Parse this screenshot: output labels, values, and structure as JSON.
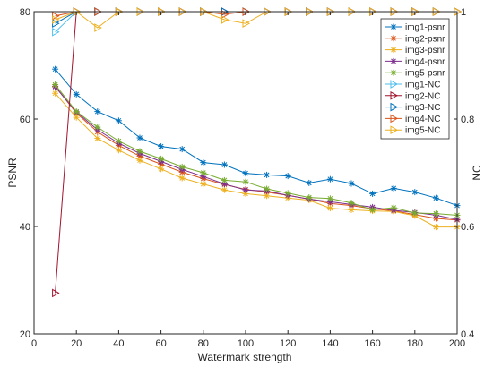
{
  "chart_data": {
    "type": "line",
    "title": "",
    "xlabel": "Watermark strength",
    "ylabel_left": "PSNR",
    "ylabel_right": "NC",
    "xlim": [
      0,
      200
    ],
    "ylim_left": [
      20,
      80
    ],
    "ylim_right": [
      0.4,
      1
    ],
    "xticks": [
      0,
      20,
      40,
      60,
      80,
      100,
      120,
      140,
      160,
      180,
      200
    ],
    "yticks_left": [
      20,
      40,
      60,
      80
    ],
    "yticks_right": [
      0.4,
      0.6,
      0.8,
      1
    ],
    "xtick_labels": [
      "0",
      "20",
      "40",
      "60",
      "80",
      "100",
      "120",
      "140",
      "160",
      "180",
      "200"
    ],
    "ytick_labels_left": [
      "20",
      "40",
      "60",
      "80"
    ],
    "ytick_labels_right": [
      "0.4",
      "0.6",
      "0.8",
      "1"
    ],
    "grid": false,
    "legend_position": "top-right",
    "x": [
      10,
      20,
      30,
      40,
      50,
      60,
      70,
      80,
      90,
      100,
      110,
      120,
      130,
      140,
      150,
      160,
      170,
      180,
      190,
      200
    ],
    "series": [
      {
        "name": "img1-psnr",
        "axis": "left",
        "marker": "asterisk",
        "color": "#0072BD",
        "values": [
          69.3,
          64.6,
          61.4,
          59.7,
          56.5,
          54.9,
          54.4,
          51.9,
          51.5,
          49.9,
          49.6,
          49.4,
          48.1,
          48.8,
          48.0,
          46.1,
          47.1,
          46.4,
          45.3,
          43.9
        ]
      },
      {
        "name": "img2-psnr",
        "axis": "left",
        "marker": "asterisk",
        "color": "#D95319",
        "values": [
          66.1,
          61.1,
          57.6,
          55.1,
          53.1,
          51.6,
          50.1,
          48.9,
          47.8,
          46.9,
          46.4,
          45.8,
          45.1,
          44.3,
          43.9,
          43.3,
          42.9,
          42.2,
          41.5,
          41.2
        ]
      },
      {
        "name": "img3-psnr",
        "axis": "left",
        "marker": "asterisk",
        "color": "#EDB120",
        "values": [
          64.8,
          60.3,
          56.4,
          54.2,
          52.3,
          50.7,
          49.0,
          47.9,
          46.8,
          46.1,
          45.7,
          45.3,
          44.9,
          43.4,
          43.1,
          42.9,
          42.8,
          42.0,
          39.9,
          39.9
        ]
      },
      {
        "name": "img4-psnr",
        "axis": "left",
        "marker": "asterisk",
        "color": "#7E2F8E",
        "values": [
          66.0,
          61.3,
          58.0,
          55.5,
          53.6,
          52.1,
          50.6,
          49.3,
          47.9,
          46.8,
          46.6,
          45.8,
          45.1,
          44.6,
          44.1,
          43.6,
          43.0,
          42.6,
          42.1,
          41.3
        ]
      },
      {
        "name": "img5-psnr",
        "axis": "left",
        "marker": "asterisk",
        "color": "#77AC30",
        "values": [
          66.4,
          61.4,
          58.5,
          55.9,
          54.0,
          52.6,
          51.1,
          50.0,
          48.6,
          48.3,
          47.0,
          46.2,
          45.4,
          45.2,
          44.4,
          43.1,
          43.5,
          42.5,
          42.4,
          42.1
        ]
      },
      {
        "name": "img1-NC",
        "axis": "right",
        "marker": "triangle-right",
        "color": "#4DBEEE",
        "values": [
          0.962,
          1,
          1,
          1,
          1,
          1,
          1,
          1,
          1,
          1,
          1,
          1,
          1,
          1,
          1,
          1,
          1,
          1,
          1,
          1
        ]
      },
      {
        "name": "img2-NC",
        "axis": "right",
        "marker": "triangle-right",
        "color": "#A2142F",
        "values": [
          0.476,
          1,
          1,
          1,
          1,
          1,
          1,
          1,
          1,
          1,
          1,
          1,
          1,
          1,
          1,
          1,
          1,
          1,
          1,
          1
        ]
      },
      {
        "name": "img3-NC",
        "axis": "right",
        "marker": "triangle-right",
        "color": "#0072BD",
        "values": [
          0.978,
          1,
          1,
          1,
          1,
          1,
          1,
          1,
          1,
          1,
          1,
          1,
          1,
          1,
          1,
          1,
          1,
          1,
          1,
          1
        ]
      },
      {
        "name": "img4-NC",
        "axis": "right",
        "marker": "triangle-right",
        "color": "#D95319",
        "values": [
          0.992,
          1,
          1,
          1,
          1,
          1,
          1,
          1,
          0.995,
          1,
          1,
          1,
          1,
          1,
          1,
          1,
          1,
          1,
          1,
          1
        ]
      },
      {
        "name": "img5-NC",
        "axis": "right",
        "marker": "triangle-right",
        "color": "#EDB120",
        "values": [
          0.985,
          1,
          0.97,
          1,
          1,
          1,
          1,
          1,
          0.985,
          0.978,
          1,
          1,
          1,
          1,
          1,
          1,
          1,
          1,
          1,
          1
        ]
      }
    ]
  }
}
